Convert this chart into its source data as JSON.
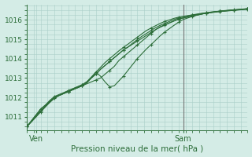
{
  "xlabel": "Pression niveau de la mer( hPa )",
  "bg_color": "#d4ece6",
  "grid_color": "#aacfc8",
  "line_color": "#2d6e3a",
  "tick_label_color": "#2d6e3a",
  "ylim": [
    1010.3,
    1016.8
  ],
  "xlim": [
    0,
    48
  ],
  "yticks": [
    1011,
    1012,
    1013,
    1014,
    1015,
    1016
  ],
  "xtick_positions": [
    2,
    34
  ],
  "xtick_labels": [
    "Ven",
    "Sam"
  ],
  "vline_x": 34,
  "series": [
    {
      "x": [
        0,
        1,
        2,
        3,
        4,
        5,
        6,
        7,
        8,
        9,
        10,
        11,
        12,
        13,
        14,
        15,
        16,
        17,
        18,
        19,
        20,
        21,
        22,
        23,
        24,
        25,
        26,
        27,
        28,
        29,
        30,
        31,
        32,
        33,
        34,
        35,
        36,
        37,
        38,
        39,
        40,
        41,
        42,
        43,
        44,
        45,
        46,
        47,
        48
      ],
      "y": [
        1010.5,
        1010.8,
        1011.1,
        1011.4,
        1011.6,
        1011.8,
        1012.0,
        1012.1,
        1012.2,
        1012.3,
        1012.4,
        1012.5,
        1012.6,
        1012.7,
        1012.8,
        1012.9,
        1013.0,
        1013.2,
        1013.4,
        1013.6,
        1013.9,
        1014.1,
        1014.3,
        1014.5,
        1014.7,
        1014.9,
        1015.1,
        1015.3,
        1015.5,
        1015.65,
        1015.75,
        1015.85,
        1015.95,
        1016.05,
        1016.1,
        1016.15,
        1016.2,
        1016.25,
        1016.3,
        1016.35,
        1016.38,
        1016.42,
        1016.45,
        1016.48,
        1016.5,
        1016.52,
        1016.54,
        1016.56,
        1016.58
      ]
    },
    {
      "x": [
        0,
        1,
        2,
        3,
        4,
        5,
        6,
        7,
        8,
        9,
        10,
        11,
        12,
        13,
        14,
        15,
        16,
        17,
        18,
        19,
        20,
        21,
        22,
        23,
        24,
        25,
        26,
        27,
        28,
        29,
        30,
        31,
        32,
        33,
        34,
        35,
        36,
        37,
        38,
        39,
        40,
        41,
        42,
        43,
        44,
        45,
        46,
        47,
        48
      ],
      "y": [
        1010.5,
        1010.8,
        1011.1,
        1011.4,
        1011.6,
        1011.85,
        1012.05,
        1012.15,
        1012.25,
        1012.35,
        1012.45,
        1012.55,
        1012.65,
        1012.8,
        1013.0,
        1013.2,
        1013.45,
        1013.65,
        1013.85,
        1014.05,
        1014.25,
        1014.45,
        1014.6,
        1014.8,
        1014.98,
        1015.15,
        1015.3,
        1015.45,
        1015.6,
        1015.72,
        1015.82,
        1015.92,
        1016.02,
        1016.1,
        1016.15,
        1016.2,
        1016.25,
        1016.28,
        1016.32,
        1016.36,
        1016.4,
        1016.42,
        1016.44,
        1016.46,
        1016.48,
        1016.5,
        1016.52,
        1016.54,
        1016.56
      ]
    },
    {
      "x": [
        0,
        1,
        2,
        3,
        4,
        5,
        6,
        7,
        8,
        9,
        10,
        11,
        12,
        13,
        14,
        15,
        16,
        17,
        18,
        19,
        20,
        21,
        22,
        23,
        24,
        25,
        26,
        27,
        28,
        29,
        30,
        31,
        32,
        33,
        34,
        35,
        36,
        37,
        38,
        39,
        40,
        41,
        42,
        43,
        44,
        45,
        46,
        47,
        48
      ],
      "y": [
        1010.5,
        1010.75,
        1011.0,
        1011.25,
        1011.5,
        1011.75,
        1012.0,
        1012.1,
        1012.2,
        1012.3,
        1012.4,
        1012.5,
        1012.6,
        1012.75,
        1013.0,
        1013.2,
        1013.45,
        1013.65,
        1013.85,
        1014.05,
        1014.25,
        1014.45,
        1014.6,
        1014.75,
        1014.9,
        1015.05,
        1015.2,
        1015.35,
        1015.5,
        1015.62,
        1015.73,
        1015.84,
        1015.94,
        1016.03,
        1016.1,
        1016.15,
        1016.2,
        1016.25,
        1016.3,
        1016.34,
        1016.37,
        1016.4,
        1016.43,
        1016.45,
        1016.47,
        1016.49,
        1016.51,
        1016.53,
        1016.55
      ]
    },
    {
      "x": [
        0,
        1,
        2,
        3,
        4,
        5,
        6,
        7,
        8,
        9,
        10,
        11,
        12,
        13,
        14,
        15,
        16,
        17,
        18,
        19,
        20,
        21,
        22,
        23,
        24,
        25,
        26,
        27,
        28,
        29,
        30,
        31,
        32,
        33,
        34,
        35,
        36,
        37,
        38,
        39,
        40,
        41,
        42,
        43,
        44,
        45,
        46,
        47,
        48
      ],
      "y": [
        1010.5,
        1010.75,
        1011.0,
        1011.3,
        1011.55,
        1011.75,
        1011.95,
        1012.1,
        1012.2,
        1012.3,
        1012.4,
        1012.5,
        1012.6,
        1012.75,
        1013.0,
        1013.3,
        1013.1,
        1012.8,
        1012.55,
        1012.6,
        1012.85,
        1013.1,
        1013.4,
        1013.7,
        1014.0,
        1014.25,
        1014.5,
        1014.72,
        1014.95,
        1015.18,
        1015.38,
        1015.55,
        1015.72,
        1015.88,
        1016.02,
        1016.1,
        1016.18,
        1016.24,
        1016.3,
        1016.35,
        1016.38,
        1016.42,
        1016.45,
        1016.47,
        1016.49,
        1016.51,
        1016.53,
        1016.55,
        1016.57
      ]
    },
    {
      "x": [
        0,
        1,
        2,
        3,
        4,
        5,
        6,
        7,
        8,
        9,
        10,
        11,
        12,
        13,
        14,
        15,
        16,
        17,
        18,
        19,
        20,
        21,
        22,
        23,
        24,
        25,
        26,
        27,
        28,
        29,
        30,
        31,
        32,
        33,
        34,
        35,
        36,
        37,
        38,
        39,
        40,
        41,
        42,
        43,
        44,
        45,
        46,
        47,
        48
      ],
      "y": [
        1010.5,
        1010.75,
        1011.05,
        1011.3,
        1011.55,
        1011.8,
        1012.0,
        1012.1,
        1012.22,
        1012.34,
        1012.45,
        1012.55,
        1012.65,
        1012.8,
        1013.05,
        1013.3,
        1013.55,
        1013.8,
        1014.0,
        1014.2,
        1014.4,
        1014.58,
        1014.75,
        1014.93,
        1015.1,
        1015.28,
        1015.45,
        1015.58,
        1015.7,
        1015.82,
        1015.92,
        1016.0,
        1016.08,
        1016.14,
        1016.18,
        1016.22,
        1016.26,
        1016.3,
        1016.34,
        1016.37,
        1016.4,
        1016.43,
        1016.45,
        1016.47,
        1016.49,
        1016.51,
        1016.53,
        1016.55,
        1016.57
      ]
    }
  ]
}
